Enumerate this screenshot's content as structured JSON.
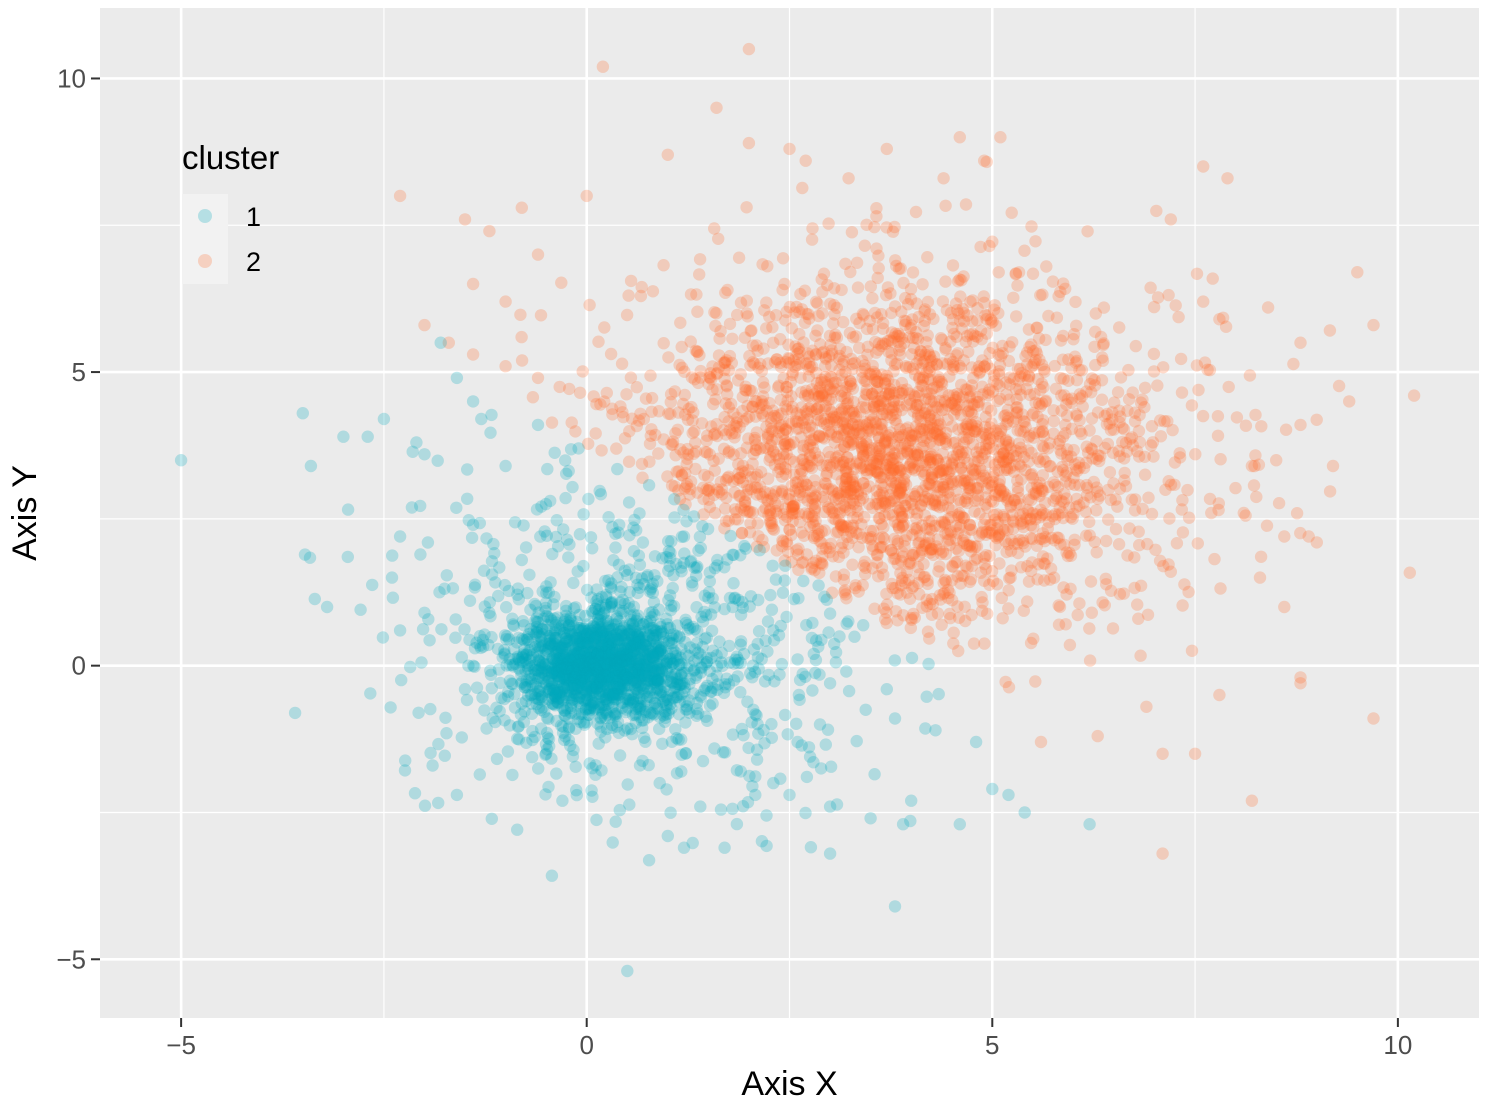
{
  "chart_data": {
    "type": "scatter",
    "title": "",
    "xlabel": "Axis X",
    "ylabel": "Axis Y",
    "xlim": [
      -6,
      11
    ],
    "ylim": [
      -6,
      11.2
    ],
    "x_ticks": [
      -5,
      0,
      5,
      10
    ],
    "y_ticks": [
      -5,
      0,
      5,
      10
    ],
    "x_tick_labels": [
      "−5",
      "0",
      "5",
      "10"
    ],
    "y_tick_labels": [
      "−5",
      "0",
      "5",
      "10"
    ],
    "grid": true,
    "legend": {
      "title": "cluster",
      "position": "top-left",
      "entries": [
        "1",
        "2"
      ]
    },
    "point_alpha": 0.25,
    "series": [
      {
        "name": "1",
        "color": "#00A9BD",
        "core": {
          "center": [
            0.2,
            0.0
          ],
          "sd": [
            0.55,
            0.45
          ],
          "n": 1500
        },
        "spread": {
          "center": [
            0.8,
            0.6
          ],
          "sd": [
            1.5,
            1.5
          ],
          "n": 650,
          "boundary": "x + 1.2*y < 4.5"
        },
        "points": [
          [
            -5.0,
            3.5
          ],
          [
            -3.5,
            4.3
          ],
          [
            -3.4,
            3.4
          ],
          [
            -3.2,
            1.0
          ],
          [
            -3.0,
            3.9
          ],
          [
            -2.7,
            3.9
          ],
          [
            -2.5,
            4.2
          ],
          [
            -2.3,
            2.2
          ],
          [
            -2.4,
            1.5
          ],
          [
            -2.1,
            3.8
          ],
          [
            -2.0,
            3.6
          ],
          [
            -1.8,
            5.5
          ],
          [
            -1.6,
            4.9
          ],
          [
            -1.4,
            4.5
          ],
          [
            -1.3,
            4.2
          ],
          [
            -2.0,
            0.9
          ],
          [
            -2.3,
            0.6
          ],
          [
            -1.9,
            -1.7
          ],
          [
            -1.6,
            -2.2
          ],
          [
            -1.2,
            0.9
          ],
          [
            -1.5,
            -0.4
          ],
          [
            -0.3,
            -2.3
          ],
          [
            0.5,
            -5.2
          ],
          [
            1.0,
            -2.9
          ],
          [
            1.2,
            -3.1
          ],
          [
            1.7,
            -3.1
          ],
          [
            2.3,
            -2.0
          ],
          [
            2.5,
            -2.2
          ],
          [
            3.0,
            -2.4
          ],
          [
            3.5,
            -2.6
          ],
          [
            3.9,
            -2.7
          ],
          [
            3.0,
            -3.2
          ],
          [
            3.8,
            -4.1
          ],
          [
            4.0,
            -2.3
          ],
          [
            4.6,
            -2.7
          ],
          [
            5.0,
            -2.1
          ],
          [
            5.2,
            -2.2
          ],
          [
            5.4,
            -2.5
          ],
          [
            6.2,
            -2.7
          ],
          [
            4.8,
            -1.3
          ],
          [
            4.3,
            -1.1
          ],
          [
            3.8,
            -0.9
          ],
          [
            2.6,
            -1.3
          ],
          [
            2.1,
            -1.6
          ],
          [
            1.9,
            -1.8
          ],
          [
            1.4,
            -2.4
          ],
          [
            0.9,
            -2.0
          ],
          [
            -0.5,
            -1.5
          ],
          [
            -0.1,
            3.7
          ],
          [
            -0.6,
            4.1
          ],
          [
            -1.0,
            3.4
          ],
          [
            -1.4,
            2.4
          ],
          [
            -0.8,
            1.8
          ],
          [
            0.4,
            2.4
          ],
          [
            1.2,
            2.2
          ],
          [
            1.8,
            1.0
          ],
          [
            2.3,
            0.6
          ],
          [
            2.8,
            0.2
          ],
          [
            3.2,
            -0.1
          ],
          [
            3.7,
            -0.4
          ]
        ]
      },
      {
        "name": "2",
        "color": "#FF6A2C",
        "core": {
          "center": [
            3.8,
            3.6
          ],
          "sd": [
            1.7,
            1.5
          ],
          "n": 2700,
          "boundary": "x + 1.2*y > 4.5"
        },
        "points": [
          [
            2.0,
            10.5
          ],
          [
            0.2,
            10.2
          ],
          [
            1.6,
            9.5
          ],
          [
            1.0,
            8.7
          ],
          [
            2.0,
            8.9
          ],
          [
            2.5,
            8.8
          ],
          [
            2.7,
            8.6
          ],
          [
            4.6,
            9.0
          ],
          [
            5.1,
            9.0
          ],
          [
            4.9,
            8.6
          ],
          [
            3.7,
            8.8
          ],
          [
            4.4,
            8.3
          ],
          [
            7.6,
            8.5
          ],
          [
            7.9,
            8.3
          ],
          [
            -2.3,
            8.0
          ],
          [
            0.0,
            8.0
          ],
          [
            -0.8,
            7.8
          ],
          [
            -1.5,
            7.6
          ],
          [
            -1.2,
            7.4
          ],
          [
            -0.6,
            7.0
          ],
          [
            -1.4,
            6.5
          ],
          [
            -1.0,
            6.2
          ],
          [
            -2.0,
            5.8
          ],
          [
            -1.7,
            5.5
          ],
          [
            -1.4,
            5.3
          ],
          [
            -1.0,
            5.1
          ],
          [
            -0.6,
            4.9
          ],
          [
            7.2,
            7.6
          ],
          [
            7.6,
            6.2
          ],
          [
            7.8,
            5.9
          ],
          [
            8.4,
            6.1
          ],
          [
            8.8,
            5.5
          ],
          [
            9.5,
            6.7
          ],
          [
            9.7,
            5.8
          ],
          [
            10.2,
            4.6
          ],
          [
            9.4,
            4.5
          ],
          [
            8.8,
            4.1
          ],
          [
            8.6,
            2.2
          ],
          [
            8.9,
            2.2
          ],
          [
            9.0,
            2.1
          ],
          [
            8.3,
            1.5
          ],
          [
            8.6,
            1.0
          ],
          [
            8.8,
            -0.2
          ],
          [
            8.8,
            -0.3
          ],
          [
            9.7,
            -0.9
          ],
          [
            8.2,
            -2.3
          ],
          [
            7.1,
            -1.5
          ],
          [
            7.5,
            -1.5
          ],
          [
            7.1,
            -3.2
          ],
          [
            7.8,
            -0.5
          ],
          [
            6.9,
            -0.7
          ],
          [
            6.3,
            -1.2
          ],
          [
            5.6,
            -1.3
          ],
          [
            6.8,
            0.8
          ],
          [
            7.2,
            1.6
          ],
          [
            7.7,
            2.6
          ],
          [
            8.1,
            2.6
          ],
          [
            8.2,
            3.4
          ],
          [
            8.5,
            3.5
          ],
          [
            9.2,
            3.4
          ]
        ]
      }
    ]
  }
}
